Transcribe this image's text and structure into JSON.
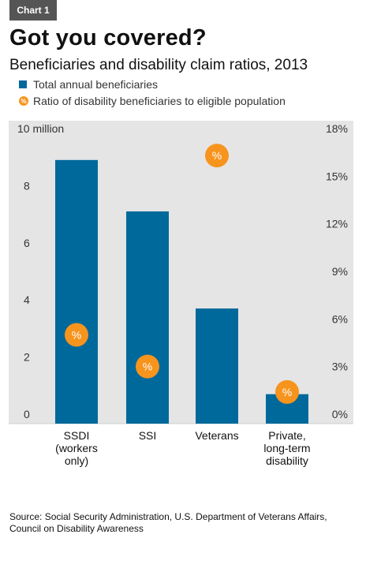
{
  "chart_tag": "Chart 1",
  "title": "Got you covered?",
  "subtitle": "Beneficiaries and disability claim ratios, 2013",
  "legend": {
    "bars": "Total annual beneficiaries",
    "dots": "Ratio of disability beneficiaries to eligible population",
    "dot_symbol": "%"
  },
  "source": "Source: Social Security Administration, U.S. Department of Veterans Affairs, Council on Disability Awareness",
  "colors": {
    "bar": "#00699b",
    "dot": "#f7941d",
    "plot_bg": "#e5e5e5"
  },
  "chart_data": {
    "type": "bar",
    "categories": [
      [
        "SSDI",
        "(workers",
        "only)"
      ],
      [
        "SSI"
      ],
      [
        "Veterans"
      ],
      [
        "Private,",
        "long-term",
        "disability"
      ]
    ],
    "series": [
      {
        "name": "Total annual beneficiaries",
        "values": [
          8.9,
          7.1,
          3.7,
          0.7
        ],
        "axis": "left"
      },
      {
        "name": "Ratio of disability beneficiaries to eligible population",
        "values": [
          5.0,
          3.0,
          16.3,
          1.4
        ],
        "axis": "right",
        "style": "dot"
      }
    ],
    "y_left": {
      "range": [
        0,
        10
      ],
      "ticks": [
        0,
        2,
        4,
        6,
        8
      ],
      "top_label": "10 million"
    },
    "y_right": {
      "range": [
        0,
        18
      ],
      "ticks": [
        "0%",
        "3%",
        "6%",
        "9%",
        "12%",
        "15%",
        "18%"
      ]
    },
    "grid": false
  }
}
